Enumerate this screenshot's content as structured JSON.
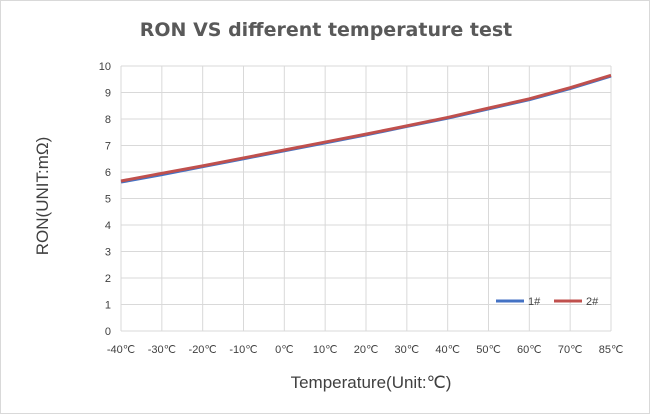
{
  "chart_data": {
    "type": "line",
    "title": "RON VS different temperature test",
    "xlabel": "Temperature(Unit:℃)",
    "ylabel": "RON(UNIT:mΩ)",
    "categories": [
      "-40℃",
      "-30℃",
      "-20℃",
      "-10℃",
      "0℃",
      "10℃",
      "20℃",
      "30℃",
      "40℃",
      "50℃",
      "60℃",
      "70℃",
      "85℃"
    ],
    "ylim": [
      0,
      10
    ],
    "yticks": [
      0,
      1,
      2,
      3,
      4,
      5,
      6,
      7,
      8,
      9,
      10
    ],
    "grid": true,
    "legend": "bottom-right",
    "series": [
      {
        "name": "1#",
        "color": "#4472c4",
        "values": [
          5.62,
          5.9,
          6.2,
          6.5,
          6.8,
          7.1,
          7.4,
          7.72,
          8.03,
          8.38,
          8.73,
          9.15,
          9.62
        ]
      },
      {
        "name": "2#",
        "color": "#c0504d",
        "values": [
          5.66,
          5.95,
          6.23,
          6.53,
          6.83,
          7.13,
          7.43,
          7.74,
          8.06,
          8.41,
          8.76,
          9.18,
          9.65
        ]
      }
    ]
  }
}
